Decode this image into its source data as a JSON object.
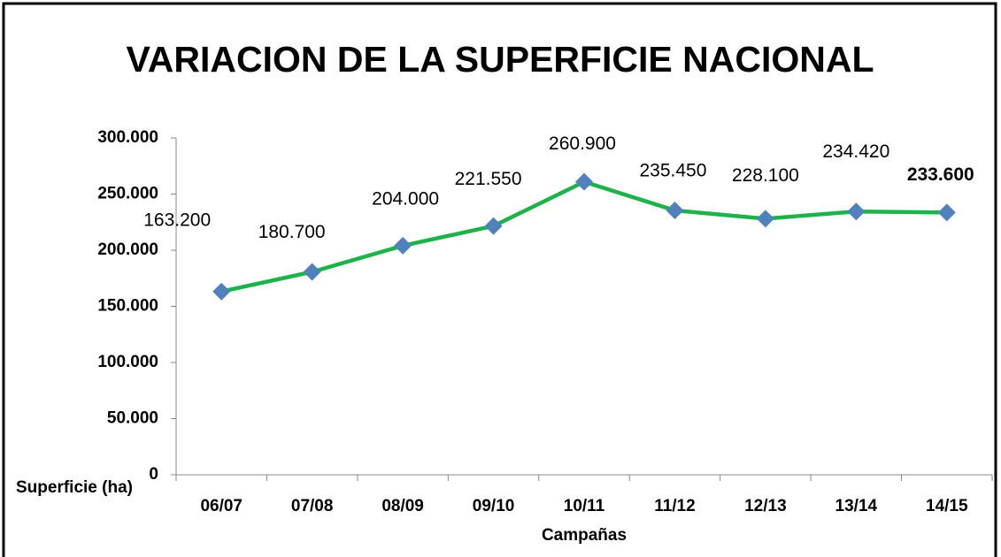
{
  "chart_data": {
    "type": "line",
    "title": "VARIACION DE LA SUPERFICIE NACIONAL",
    "y_label": "Superficie (ha)",
    "x_label": "Campañas",
    "categories": [
      "06/07",
      "07/08",
      "08/09",
      "09/10",
      "10/11",
      "11/12",
      "12/13",
      "13/14",
      "14/15"
    ],
    "series": [
      {
        "name": "Superficie",
        "color": "#1db34a",
        "marker_color": "#4f81bd",
        "values": [
          163200,
          180700,
          204000,
          221550,
          260900,
          235450,
          228100,
          234420,
          233600
        ],
        "value_labels": [
          "163.200",
          "180.700",
          "204.000",
          "221.550",
          "260.900",
          "235.450",
          "228.100",
          "234.420",
          "233.600"
        ]
      }
    ],
    "ylim": [
      0,
      300000
    ],
    "yticks": [
      0,
      {
        "value": 50000,
        "label": "50.000"
      },
      {
        "value": 100000,
        "label": "100.000"
      },
      {
        "value": 150000,
        "label": "150.000"
      },
      {
        "value": 200000,
        "label": "200.000"
      },
      {
        "value": 250000,
        "label": "250.000"
      },
      {
        "value": 300000,
        "label": "300.000"
      }
    ],
    "grid": false,
    "legend": false
  }
}
